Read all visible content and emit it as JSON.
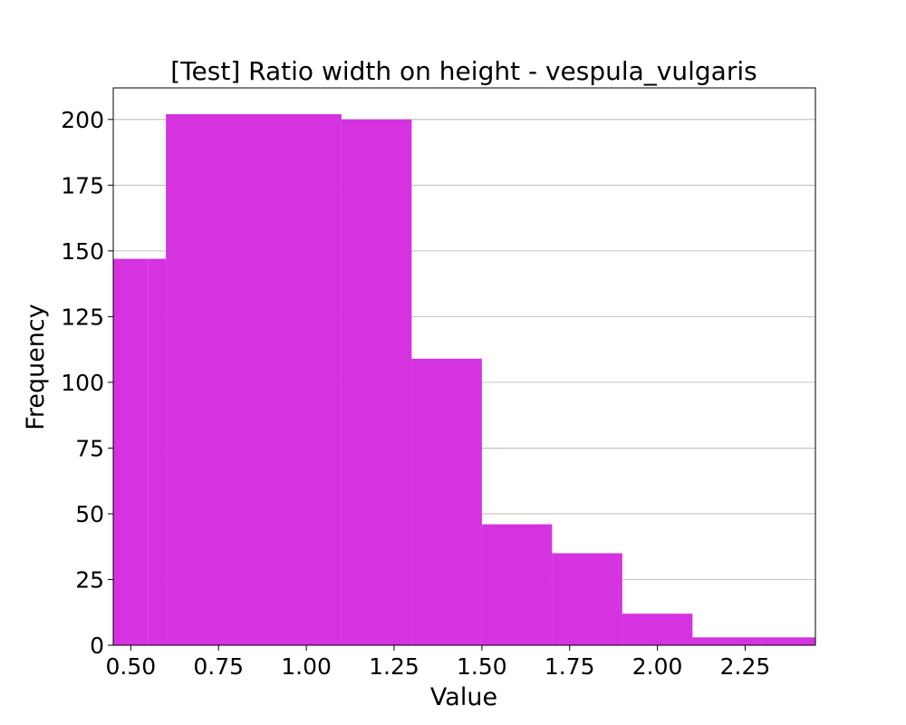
{
  "chart_data": {
    "type": "bar",
    "title": "[Test] Ratio width on height - vespula_vulgaris",
    "xlabel": "Value",
    "ylabel": "Frequency",
    "bin_edges": [
      0.35,
      0.55,
      0.6,
      1.1,
      1.3,
      1.5,
      1.7,
      1.9,
      2.1,
      2.3,
      2.45
    ],
    "values": [
      147,
      147,
      202,
      200,
      109,
      46,
      35,
      12,
      3,
      3
    ],
    "xlim": [
      0.45,
      2.45
    ],
    "ylim": [
      0,
      212
    ],
    "xticks": [
      "0.50",
      "0.75",
      "1.00",
      "1.25",
      "1.50",
      "1.75",
      "2.00",
      "2.25"
    ],
    "yticks": [
      "0",
      "25",
      "50",
      "75",
      "100",
      "125",
      "150",
      "175",
      "200"
    ],
    "grid": "horizontal",
    "bar_color": "#d532e0"
  }
}
